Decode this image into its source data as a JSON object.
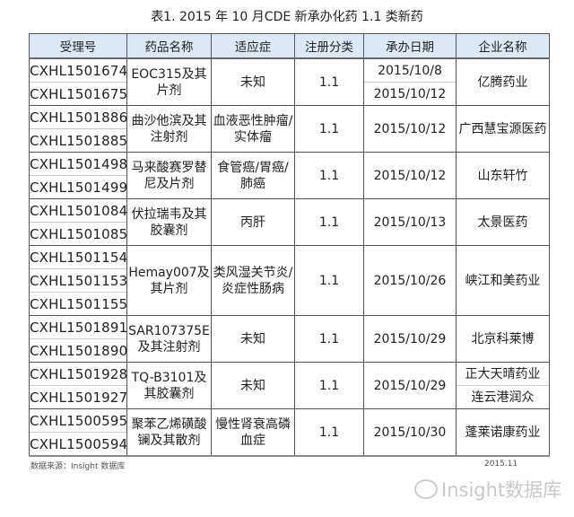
{
  "title": "表1. 2015 年 10 月CDE 新承办化药 1.1 类新药",
  "headers": [
    "受理号",
    "药品名称",
    "适应症",
    "注册分类",
    "承办日期",
    "企业名称"
  ],
  "rows": [
    {
      "ids": [
        "CXHL1501674",
        "CXHL1501675"
      ],
      "drug": "EOC315及其片剂",
      "indication": "未知",
      "class": "1.1",
      "dates": [
        "2015/10/8",
        "2015/10/12"
      ],
      "companies": [
        "亿腾药业"
      ]
    },
    {
      "ids": [
        "CXHL1501886",
        "CXHL1501885"
      ],
      "drug": "曲沙他滨及其注射剂",
      "indication": "血液恶性肿瘤/实体瘤",
      "class": "1.1",
      "dates": [
        "2015/10/12"
      ],
      "companies": [
        "广西慧宝源医药"
      ]
    },
    {
      "ids": [
        "CXHL1501498",
        "CXHL1501499"
      ],
      "drug": "马来酸赛罗替尼及片剂",
      "indication": "食管癌/胃癌/肺癌",
      "class": "1.1",
      "dates": [
        "2015/10/12"
      ],
      "companies": [
        "山东轩竹"
      ]
    },
    {
      "ids": [
        "CXHL1501084",
        "CXHL1501085"
      ],
      "drug": "伏拉瑞韦及其胶囊剂",
      "indication": "丙肝",
      "class": "1.1",
      "dates": [
        "2015/10/13"
      ],
      "companies": [
        "太景医药"
      ]
    },
    {
      "ids": [
        "CXHL1501154",
        "CXHL1501153",
        "CXHL1501155"
      ],
      "drug": "Hemay007及其片剂",
      "indication": "类风湿关节炎/炎症性肠病",
      "class": "1.1",
      "dates": [
        "2015/10/26"
      ],
      "companies": [
        "峡江和美药业"
      ]
    },
    {
      "ids": [
        "CXHL1501891",
        "CXHL1501890"
      ],
      "drug": "SAR107375E及其注射剂",
      "indication": "未知",
      "class": "1.1",
      "dates": [
        "2015/10/29"
      ],
      "companies": [
        "北京科莱博"
      ]
    },
    {
      "ids": [
        "CXHL1501928",
        "CXHL1501927"
      ],
      "drug": "TQ-B3101及其胶囊剂",
      "indication": "未知",
      "class": "1.1",
      "dates": [
        "2015/10/29"
      ],
      "companies": [
        "正大天晴药业",
        "连云港润众"
      ]
    },
    {
      "ids": [
        "CXHL1500595",
        "CXHL1500594"
      ],
      "drug": "聚苯乙烯磺酸镧及其散剂",
      "indication": "慢性肾衰高磷血症",
      "class": "1.1",
      "dates": [
        "2015/10/30"
      ],
      "companies": [
        "蓬莱诺康药业"
      ]
    }
  ],
  "footer": {
    "source": "数据来源：Insight 数据库",
    "date": "2015.11"
  },
  "watermark": "Insight数据库"
}
